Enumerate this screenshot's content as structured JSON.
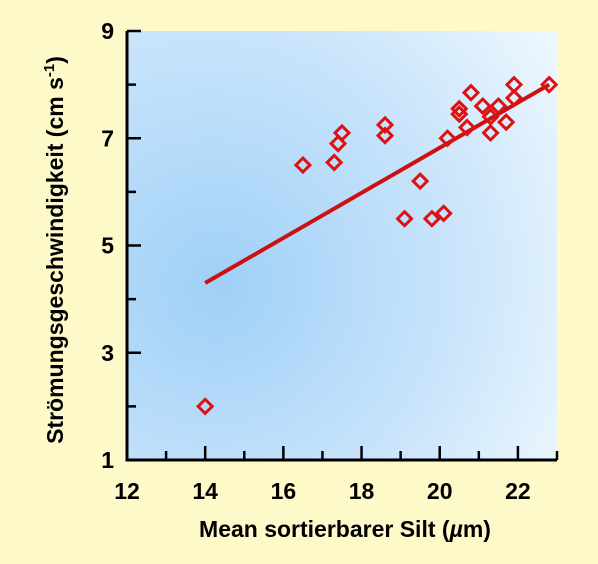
{
  "chart_data": {
    "type": "scatter",
    "title": "",
    "xlabel": "Mean sortierbarer Silt (µm)",
    "xlabel_main": "Mean sortierbarer Silt (",
    "xlabel_unit_symbol": "µ",
    "xlabel_unit_rest": "m)",
    "ylabel": "Strömungsgeschwindigkeit (cm s-1)",
    "ylabel_main": "Strömungsgeschwindigkeit (cm s",
    "ylabel_sup": "-1",
    "ylabel_close": ")",
    "xlim": [
      12,
      23
    ],
    "ylim": [
      1,
      9
    ],
    "xticks": [
      12,
      14,
      16,
      18,
      20,
      22
    ],
    "yticks": [
      1,
      3,
      5,
      7,
      9
    ],
    "xtick_labels": [
      "12",
      "14",
      "16",
      "18",
      "20",
      "22"
    ],
    "ytick_labels": [
      "1",
      "3",
      "5",
      "7",
      "9"
    ],
    "grid": false,
    "legend": "none",
    "colors": {
      "marker": "#dd1111",
      "trend": "#cc1111",
      "axes": "#000000",
      "page_background": "#fdf9c8",
      "plot_gradient_blue": "#9fd0f7",
      "plot_gradient_light": "#f2fafe"
    },
    "series": [
      {
        "marker": "diamond-open",
        "points": [
          {
            "x": 14.0,
            "y": 2.0
          },
          {
            "x": 16.5,
            "y": 6.5
          },
          {
            "x": 17.3,
            "y": 6.55
          },
          {
            "x": 17.4,
            "y": 6.9
          },
          {
            "x": 17.5,
            "y": 7.1
          },
          {
            "x": 18.6,
            "y": 7.25
          },
          {
            "x": 18.6,
            "y": 7.05
          },
          {
            "x": 19.1,
            "y": 5.5
          },
          {
            "x": 19.5,
            "y": 6.2
          },
          {
            "x": 19.8,
            "y": 5.5
          },
          {
            "x": 20.1,
            "y": 5.6
          },
          {
            "x": 20.2,
            "y": 7.0
          },
          {
            "x": 20.5,
            "y": 7.55
          },
          {
            "x": 20.5,
            "y": 7.45
          },
          {
            "x": 20.7,
            "y": 7.2
          },
          {
            "x": 20.8,
            "y": 7.85
          },
          {
            "x": 21.1,
            "y": 7.6
          },
          {
            "x": 21.3,
            "y": 7.4
          },
          {
            "x": 21.3,
            "y": 7.1
          },
          {
            "x": 21.5,
            "y": 7.6
          },
          {
            "x": 21.7,
            "y": 7.3
          },
          {
            "x": 21.9,
            "y": 8.0
          },
          {
            "x": 21.9,
            "y": 7.75
          },
          {
            "x": 22.8,
            "y": 8.0
          }
        ]
      }
    ],
    "trendline": {
      "x": [
        14.0,
        22.8
      ],
      "y": [
        4.3,
        8.0
      ]
    }
  }
}
